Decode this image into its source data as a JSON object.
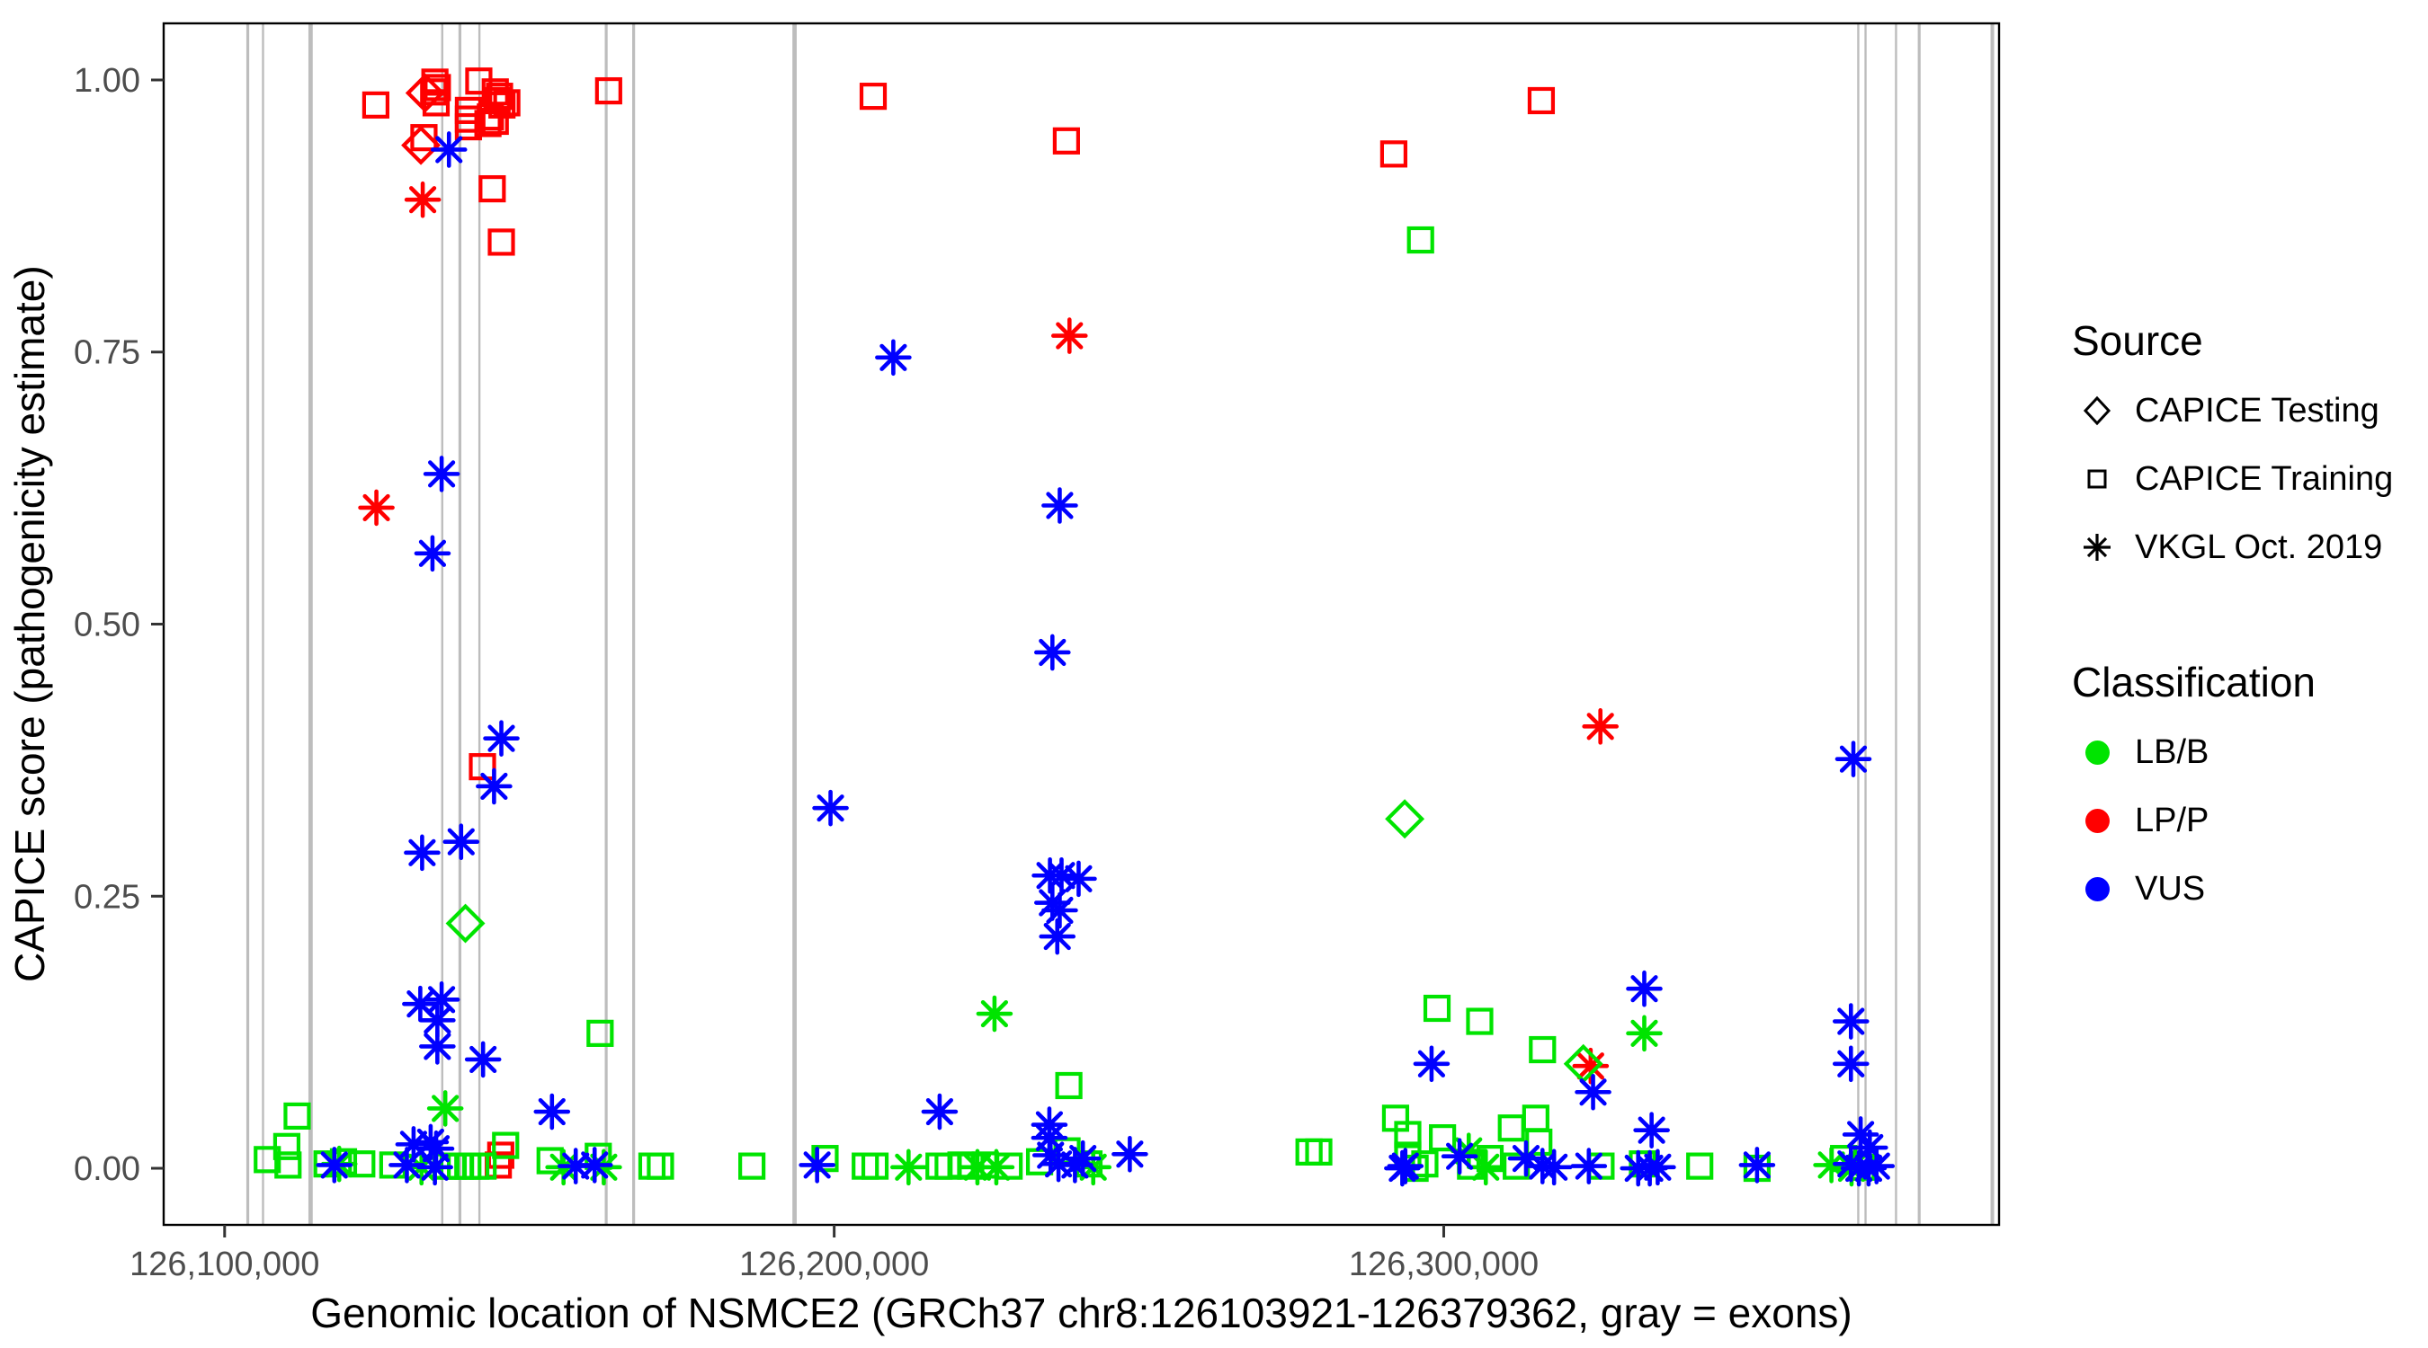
{
  "chart_data": {
    "type": "scatter",
    "title": "",
    "xlabel": "Genomic location of NSMCE2 (GRCh37 chr8:126103921-126379362, gray = exons)",
    "ylabel": "CAPICE score (pathogenicity estimate)",
    "xlim": [
      126090000,
      126391100
    ],
    "ylim": [
      -0.052,
      1.052
    ],
    "grid": false,
    "legend_position": "right",
    "xticks": {
      "values": [
        126100000,
        126200000,
        126300000
      ],
      "labels": [
        "126,100,000",
        "126,200,000",
        "126,300,000"
      ]
    },
    "yticks": {
      "values": [
        0,
        0.25,
        0.5,
        0.75,
        1
      ],
      "labels": [
        "0.00",
        "0.25",
        "0.50",
        "0.75",
        "1.00"
      ]
    },
    "colors": {
      "B": "#00E400",
      "P": "#FF0000",
      "U": "#0000FF",
      "exon": "#BDBDBD",
      "axis_text": "#4D4D4D",
      "axis_line": "#333333",
      "panel_border": "#000000"
    },
    "legend": {
      "source": {
        "title": "Source",
        "items": [
          {
            "label": "CAPICE Testing",
            "marker": "diamond",
            "key": "T"
          },
          {
            "label": "CAPICE Training",
            "marker": "square",
            "key": "R"
          },
          {
            "label": "VKGL Oct. 2019",
            "marker": "asterisk",
            "key": "V"
          }
        ]
      },
      "classification": {
        "title": "Classification",
        "items": [
          {
            "label": "LB/B",
            "key": "B"
          },
          {
            "label": "LP/P",
            "key": "P"
          },
          {
            "label": "VUS",
            "key": "U"
          }
        ]
      }
    },
    "exons": [
      [
        126103800,
        2
      ],
      [
        126106300,
        1.5
      ],
      [
        126114100,
        3
      ],
      [
        126135700,
        1.5
      ],
      [
        126138600,
        2
      ],
      [
        126141800,
        1.5
      ],
      [
        126162600,
        2
      ],
      [
        126167100,
        2
      ],
      [
        126193500,
        3
      ],
      [
        126368000,
        1.5
      ],
      [
        126369200,
        1.5
      ],
      [
        126374200,
        1.5
      ],
      [
        126378000,
        2
      ],
      [
        126390000,
        2.5
      ]
    ],
    "points": [
      [
        126124800,
        0.977,
        "R",
        "P"
      ],
      [
        126134500,
        0.998,
        "R",
        "P"
      ],
      [
        126134900,
        0.993,
        "R",
        "P"
      ],
      [
        126134300,
        0.989,
        "R",
        "P"
      ],
      [
        126134700,
        0.979,
        "R",
        "P"
      ],
      [
        126141700,
        0.999,
        "R",
        "P"
      ],
      [
        126144400,
        0.989,
        "R",
        "P"
      ],
      [
        126145100,
        0.985,
        "R",
        "P"
      ],
      [
        126144700,
        0.981,
        "R",
        "P"
      ],
      [
        126146300,
        0.979,
        "R",
        "P"
      ],
      [
        126145500,
        0.977,
        "R",
        "P"
      ],
      [
        126140000,
        0.972,
        "R",
        "P"
      ],
      [
        126140000,
        0.964,
        "R",
        "P"
      ],
      [
        126140000,
        0.957,
        "R",
        "P"
      ],
      [
        126143600,
        0.966,
        "R",
        "P"
      ],
      [
        126144400,
        0.962,
        "R",
        "P"
      ],
      [
        126143200,
        0.96,
        "R",
        "P"
      ],
      [
        126132700,
        0.947,
        "R",
        "P"
      ],
      [
        126163000,
        0.99,
        "R",
        "P"
      ],
      [
        126143900,
        0.9,
        "R",
        "P"
      ],
      [
        126145400,
        0.851,
        "R",
        "P"
      ],
      [
        126142300,
        0.369,
        "R",
        "P"
      ],
      [
        126206400,
        0.985,
        "R",
        "P"
      ],
      [
        126238100,
        0.944,
        "R",
        "P"
      ],
      [
        126316000,
        0.981,
        "R",
        "P"
      ],
      [
        126291800,
        0.932,
        "R",
        "P"
      ],
      [
        126145300,
        0.012,
        "R",
        "P"
      ],
      [
        126144900,
        0.003,
        "R",
        "P"
      ],
      [
        126132900,
        0.988,
        "T",
        "P"
      ],
      [
        126132200,
        0.94,
        "T",
        "P"
      ],
      [
        126132500,
        0.89,
        "V",
        "P"
      ],
      [
        126124900,
        0.607,
        "V",
        "P"
      ],
      [
        126238600,
        0.765,
        "V",
        "P"
      ],
      [
        126325700,
        0.406,
        "V",
        "P"
      ],
      [
        126324100,
        0.094,
        "V",
        "P"
      ],
      [
        126296200,
        0.853,
        "R",
        "B"
      ],
      [
        126161600,
        0.124,
        "R",
        "B"
      ],
      [
        126111900,
        0.048,
        "R",
        "B"
      ],
      [
        126107000,
        0.008,
        "R",
        "B"
      ],
      [
        126110200,
        0.02,
        "R",
        "B"
      ],
      [
        126110400,
        0.003,
        "R",
        "B"
      ],
      [
        126116800,
        0.004,
        "R",
        "B"
      ],
      [
        126119500,
        0.006,
        "R",
        "B"
      ],
      [
        126122500,
        0.004,
        "R",
        "B"
      ],
      [
        126127600,
        0.003,
        "R",
        "B"
      ],
      [
        126136300,
        0.002,
        "R",
        "B"
      ],
      [
        126137500,
        0.002,
        "R",
        "B"
      ],
      [
        126138700,
        0.002,
        "R",
        "B"
      ],
      [
        126139900,
        0.002,
        "R",
        "B"
      ],
      [
        126141200,
        0.002,
        "R",
        "B"
      ],
      [
        126142400,
        0.002,
        "R",
        "B"
      ],
      [
        126146100,
        0.021,
        "R",
        "B"
      ],
      [
        126153400,
        0.007,
        "R",
        "B"
      ],
      [
        126161300,
        0.011,
        "R",
        "B"
      ],
      [
        126170100,
        0.002,
        "R",
        "B"
      ],
      [
        126171500,
        0.002,
        "R",
        "B"
      ],
      [
        126186500,
        0.002,
        "R",
        "B"
      ],
      [
        126198500,
        0.009,
        "R",
        "B"
      ],
      [
        126205100,
        0.002,
        "R",
        "B"
      ],
      [
        126206700,
        0.002,
        "R",
        "B"
      ],
      [
        126217200,
        0.002,
        "R",
        "B"
      ],
      [
        126218700,
        0.002,
        "R",
        "B"
      ],
      [
        126220800,
        0.003,
        "R",
        "B"
      ],
      [
        126222400,
        0.002,
        "R",
        "B"
      ],
      [
        126224800,
        0.003,
        "R",
        "B"
      ],
      [
        126228700,
        0.002,
        "R",
        "B"
      ],
      [
        126233700,
        0.006,
        "R",
        "B"
      ],
      [
        126238200,
        0.016,
        "R",
        "B"
      ],
      [
        126238500,
        0.076,
        "R",
        "B"
      ],
      [
        126241800,
        0.004,
        "R",
        "B"
      ],
      [
        126277900,
        0.015,
        "R",
        "B"
      ],
      [
        126279500,
        0.015,
        "R",
        "B"
      ],
      [
        126298900,
        0.147,
        "R",
        "B"
      ],
      [
        126305900,
        0.135,
        "R",
        "B"
      ],
      [
        126316200,
        0.109,
        "R",
        "B"
      ],
      [
        126292100,
        0.046,
        "R",
        "B"
      ],
      [
        126294100,
        0.031,
        "R",
        "B"
      ],
      [
        126294100,
        0.012,
        "R",
        "B"
      ],
      [
        126295300,
        0.0,
        "R",
        "B"
      ],
      [
        126296900,
        0.004,
        "R",
        "B"
      ],
      [
        126299800,
        0.028,
        "R",
        "B"
      ],
      [
        126304400,
        0.002,
        "R",
        "B"
      ],
      [
        126307600,
        0.009,
        "R",
        "B"
      ],
      [
        126311900,
        0.002,
        "R",
        "B"
      ],
      [
        126315100,
        0.046,
        "R",
        "B"
      ],
      [
        126315600,
        0.024,
        "R",
        "B"
      ],
      [
        126311100,
        0.037,
        "R",
        "B"
      ],
      [
        126325800,
        0.002,
        "R",
        "B"
      ],
      [
        126332600,
        0.004,
        "R",
        "B"
      ],
      [
        126342000,
        0.002,
        "R",
        "B"
      ],
      [
        126351400,
        0.0,
        "R",
        "B"
      ],
      [
        126365600,
        0.009,
        "R",
        "B"
      ],
      [
        126368600,
        0.001,
        "R",
        "B"
      ],
      [
        126139500,
        0.225,
        "T",
        "B"
      ],
      [
        126293600,
        0.321,
        "T",
        "B"
      ],
      [
        126322900,
        0.096,
        "T",
        "B"
      ],
      [
        126118800,
        0.004,
        "V",
        "B"
      ],
      [
        126136200,
        0.055,
        "V",
        "B"
      ],
      [
        126226300,
        0.142,
        "V",
        "B"
      ],
      [
        126332900,
        0.124,
        "V",
        "B"
      ],
      [
        126132300,
        0.001,
        "V",
        "B"
      ],
      [
        126155600,
        0.001,
        "V",
        "B"
      ],
      [
        126162200,
        0.001,
        "V",
        "B"
      ],
      [
        126212200,
        0.001,
        "V",
        "B"
      ],
      [
        126223500,
        0.001,
        "V",
        "B"
      ],
      [
        126226600,
        0.001,
        "V",
        "B"
      ],
      [
        126242500,
        0.001,
        "V",
        "B"
      ],
      [
        126304100,
        0.016,
        "V",
        "B"
      ],
      [
        126306900,
        0.001,
        "V",
        "B"
      ],
      [
        126363600,
        0.003,
        "V",
        "B"
      ],
      [
        126366900,
        0.0,
        "V",
        "B"
      ],
      [
        126136800,
        0.936,
        "V",
        "U"
      ],
      [
        126209700,
        0.745,
        "V",
        "U"
      ],
      [
        126135600,
        0.638,
        "V",
        "U"
      ],
      [
        126134100,
        0.565,
        "V",
        "U"
      ],
      [
        126145400,
        0.395,
        "V",
        "U"
      ],
      [
        126144200,
        0.351,
        "V",
        "U"
      ],
      [
        126132400,
        0.29,
        "V",
        "U"
      ],
      [
        126138800,
        0.3,
        "V",
        "U"
      ],
      [
        126237000,
        0.609,
        "V",
        "U"
      ],
      [
        126235800,
        0.474,
        "V",
        "U"
      ],
      [
        126199400,
        0.331,
        "V",
        "U"
      ],
      [
        126132100,
        0.151,
        "V",
        "U"
      ],
      [
        126135600,
        0.155,
        "V",
        "U"
      ],
      [
        126134900,
        0.136,
        "V",
        "U"
      ],
      [
        126134900,
        0.112,
        "V",
        "U"
      ],
      [
        126142400,
        0.1,
        "V",
        "U"
      ],
      [
        126153700,
        0.052,
        "V",
        "U"
      ],
      [
        126217300,
        0.052,
        "V",
        "U"
      ],
      [
        126235400,
        0.269,
        "V",
        "U"
      ],
      [
        126237300,
        0.269,
        "V",
        "U"
      ],
      [
        126240100,
        0.266,
        "V",
        "U"
      ],
      [
        126235800,
        0.244,
        "V",
        "U"
      ],
      [
        126237000,
        0.237,
        "V",
        "U"
      ],
      [
        126236600,
        0.213,
        "V",
        "U"
      ],
      [
        126235300,
        0.04,
        "V",
        "U"
      ],
      [
        126235300,
        0.028,
        "V",
        "U"
      ],
      [
        126248500,
        0.013,
        "V",
        "U"
      ],
      [
        126298000,
        0.096,
        "V",
        "U"
      ],
      [
        126332900,
        0.165,
        "V",
        "U"
      ],
      [
        126324500,
        0.07,
        "V",
        "U"
      ],
      [
        126366800,
        0.135,
        "V",
        "U"
      ],
      [
        126366800,
        0.096,
        "V",
        "U"
      ],
      [
        126367200,
        0.376,
        "V",
        "U"
      ],
      [
        126334100,
        0.035,
        "V",
        "U"
      ],
      [
        126118000,
        0.003,
        "V",
        "U"
      ],
      [
        126129900,
        0.003,
        "V",
        "U"
      ],
      [
        126131000,
        0.022,
        "V",
        "U"
      ],
      [
        126133800,
        0.024,
        "V",
        "U"
      ],
      [
        126134700,
        0.018,
        "V",
        "U"
      ],
      [
        126134500,
        0.001,
        "V",
        "U"
      ],
      [
        126157600,
        0.002,
        "V",
        "U"
      ],
      [
        126160700,
        0.003,
        "V",
        "U"
      ],
      [
        126197200,
        0.003,
        "V",
        "U"
      ],
      [
        126235500,
        0.012,
        "V",
        "U"
      ],
      [
        126236800,
        0.004,
        "V",
        "U"
      ],
      [
        126239500,
        0.003,
        "V",
        "U"
      ],
      [
        126240800,
        0.009,
        "V",
        "U"
      ],
      [
        126293700,
        0.002,
        "V",
        "U"
      ],
      [
        126293200,
        0.0,
        "V",
        "U"
      ],
      [
        126302600,
        0.011,
        "V",
        "U"
      ],
      [
        126313500,
        0.009,
        "V",
        "U"
      ],
      [
        126316200,
        0.002,
        "V",
        "U"
      ],
      [
        126318100,
        0.001,
        "V",
        "U"
      ],
      [
        126323800,
        0.002,
        "V",
        "U"
      ],
      [
        126331900,
        0.0,
        "V",
        "U"
      ],
      [
        126333800,
        0.0,
        "V",
        "U"
      ],
      [
        126335100,
        0.001,
        "V",
        "U"
      ],
      [
        126351400,
        0.003,
        "V",
        "U"
      ],
      [
        126368400,
        0.031,
        "V",
        "U"
      ],
      [
        126369900,
        0.019,
        "V",
        "U"
      ],
      [
        126366800,
        0.004,
        "V",
        "U"
      ],
      [
        126368100,
        0.0,
        "V",
        "U"
      ],
      [
        126369700,
        0.0,
        "V",
        "U"
      ],
      [
        126371000,
        0.002,
        "V",
        "U"
      ]
    ]
  }
}
